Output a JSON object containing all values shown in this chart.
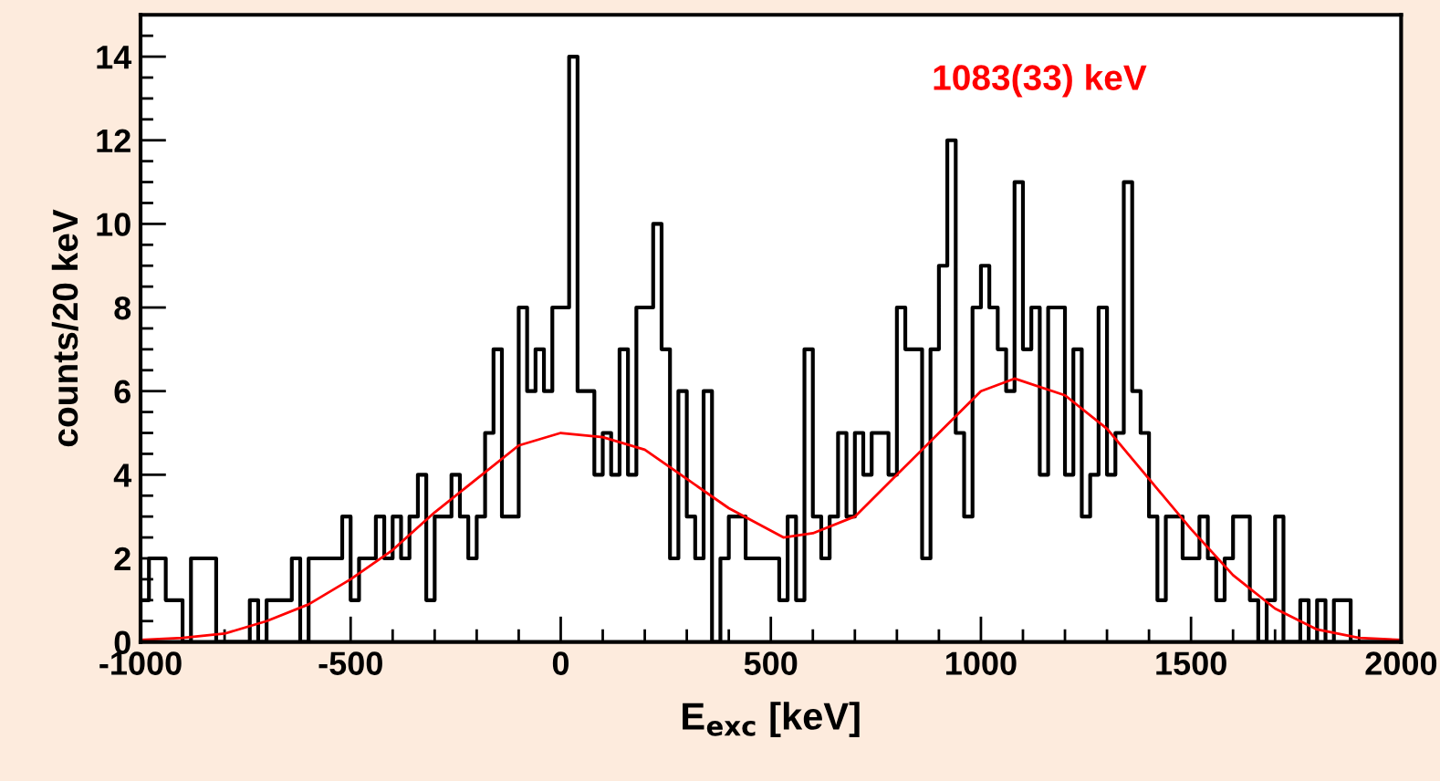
{
  "chart_data": {
    "type": "histogram",
    "xlabel": "E$_{exc}$ [keV]",
    "ylabel": "counts/20 keV",
    "bins": [
      -1000,
      -980,
      -960,
      -940,
      -920,
      -900,
      -880,
      -860,
      -840,
      -820,
      -800,
      -780,
      -760,
      -740,
      -720,
      -700,
      -680,
      -660,
      -640,
      -620,
      -600,
      -580,
      -560,
      -540,
      -520,
      -500,
      -480,
      -460,
      -440,
      -420,
      -400,
      -380,
      -360,
      -340,
      -320,
      -300,
      -280,
      -260,
      -240,
      -220,
      -200,
      -180,
      -160,
      -140,
      -120,
      -100,
      -80,
      -60,
      -40,
      -20,
      0,
      20,
      40,
      60,
      80,
      100,
      120,
      140,
      160,
      180,
      200,
      220,
      240,
      260,
      280,
      300,
      320,
      340,
      360,
      380,
      400,
      420,
      440,
      460,
      480,
      500,
      520,
      540,
      560,
      580,
      600,
      620,
      640,
      660,
      680,
      700,
      720,
      740,
      760,
      780,
      800,
      820,
      840,
      860,
      880,
      900,
      920,
      940,
      960,
      980,
      1000,
      1020,
      1040,
      1060,
      1080,
      1100,
      1120,
      1140,
      1160,
      1180,
      1200,
      1220,
      1240,
      1260,
      1280,
      1300,
      1320,
      1340,
      1360,
      1380,
      1400,
      1420,
      1440,
      1460,
      1480,
      1500,
      1520,
      1540,
      1560,
      1580,
      1600,
      1620,
      1640,
      1660,
      1680,
      1700,
      1720,
      1740,
      1760,
      1780,
      1800,
      1820,
      1840,
      1860,
      1880,
      1900,
      1920,
      1940,
      1960,
      1980,
      2000
    ],
    "values": [
      1,
      2,
      2,
      1,
      1,
      0,
      2,
      2,
      2,
      0,
      0,
      0,
      0,
      1,
      0,
      1,
      1,
      1,
      2,
      0,
      2,
      2,
      2,
      2,
      3,
      1,
      2,
      2,
      3,
      2,
      3,
      2,
      3,
      4,
      1,
      3,
      3,
      4,
      3,
      2,
      3,
      5,
      7,
      3,
      3,
      8,
      6,
      7,
      6,
      8,
      8,
      14,
      6,
      6,
      4,
      5,
      4,
      7,
      4,
      8,
      8,
      10,
      7,
      2,
      6,
      3,
      2,
      6,
      0,
      2,
      3,
      3,
      2,
      2,
      2,
      2,
      1,
      3,
      1,
      7,
      3,
      2,
      3,
      5,
      3,
      5,
      4,
      5,
      5,
      4,
      8,
      7,
      7,
      2,
      7,
      9,
      12,
      5,
      3,
      8,
      9,
      8,
      7,
      6,
      11,
      7,
      8,
      4,
      8,
      8,
      4,
      7,
      3,
      4,
      8,
      4,
      5,
      11,
      6,
      5,
      3,
      1,
      3,
      3,
      2,
      2,
      3,
      2,
      1,
      2,
      3,
      3,
      1,
      0,
      1,
      3,
      0,
      0,
      1,
      0,
      1,
      0,
      1,
      1,
      0,
      0,
      0,
      0,
      0,
      0
    ],
    "color": "#000000",
    "series": [
      {
        "type": "line",
        "color": "#ff0000",
        "x": [
          -1000,
          -900,
          -800,
          -700,
          -600,
          -500,
          -400,
          -300,
          -200,
          -100,
          0,
          100,
          200,
          300,
          400,
          530,
          600,
          700,
          800,
          900,
          1000,
          1080,
          1200,
          1300,
          1400,
          1500,
          1600,
          1700,
          1800,
          1900,
          2000
        ],
        "values": [
          0.05,
          0.1,
          0.2,
          0.5,
          0.9,
          1.5,
          2.2,
          3.1,
          3.9,
          4.7,
          5.0,
          4.9,
          4.6,
          3.9,
          3.2,
          2.5,
          2.6,
          3.0,
          4.0,
          5.0,
          6.0,
          6.3,
          5.9,
          5.1,
          3.9,
          2.7,
          1.6,
          0.8,
          0.3,
          0.1,
          0.05
        ]
      }
    ],
    "annotations": [
      "1083(33) keV"
    ],
    "xlim": [
      -1000,
      2000
    ],
    "xticks": [
      -1000,
      {
        "value": -900,
        "label": null
      },
      {
        "value": -800,
        "label": null
      },
      {
        "value": -700,
        "label": null
      },
      {
        "value": -600,
        "label": null
      },
      -500,
      {
        "value": -400,
        "label": null
      },
      {
        "value": -300,
        "label": null
      },
      {
        "value": -200,
        "label": null
      },
      {
        "value": -100,
        "label": null
      },
      0,
      {
        "value": 100,
        "label": null
      },
      {
        "value": 200,
        "label": null
      },
      {
        "value": 300,
        "label": null
      },
      {
        "value": 400,
        "label": null
      },
      500,
      {
        "value": 600,
        "label": null
      },
      {
        "value": 700,
        "label": null
      },
      {
        "value": 800,
        "label": null
      },
      {
        "value": 900,
        "label": null
      },
      1000,
      {
        "value": 1100,
        "label": null
      },
      {
        "value": 1200,
        "label": null
      },
      {
        "value": 1300,
        "label": null
      },
      {
        "value": 1400,
        "label": null
      },
      1500,
      {
        "value": 1600,
        "label": null
      },
      {
        "value": 1700,
        "label": null
      },
      {
        "value": 1800,
        "label": null
      },
      {
        "value": 1900,
        "label": null
      },
      2000
    ],
    "ylim": [
      0,
      15
    ],
    "yticks": [
      0,
      {
        "value": 0.5,
        "label": null
      },
      {
        "value": 1,
        "label": null
      },
      {
        "value": 1.5,
        "label": null
      },
      2,
      {
        "value": 2.5,
        "label": null
      },
      {
        "value": 3,
        "label": null
      },
      {
        "value": 3.5,
        "label": null
      },
      4,
      {
        "value": 4.5,
        "label": null
      },
      {
        "value": 5,
        "label": null
      },
      {
        "value": 5.5,
        "label": null
      },
      6,
      {
        "value": 6.5,
        "label": null
      },
      {
        "value": 7,
        "label": null
      },
      {
        "value": 7.5,
        "label": null
      },
      8,
      {
        "value": 8.5,
        "label": null
      },
      {
        "value": 9,
        "label": null
      },
      {
        "value": 9.5,
        "label": null
      },
      10,
      {
        "value": 10.5,
        "label": null
      },
      {
        "value": 11,
        "label": null
      },
      {
        "value": 11.5,
        "label": null
      },
      12,
      {
        "value": 12.5,
        "label": null
      },
      {
        "value": 13,
        "label": null
      },
      {
        "value": 13.5,
        "label": null
      },
      14,
      {
        "value": 14.5,
        "label": null
      }
    ],
    "grid": false
  }
}
